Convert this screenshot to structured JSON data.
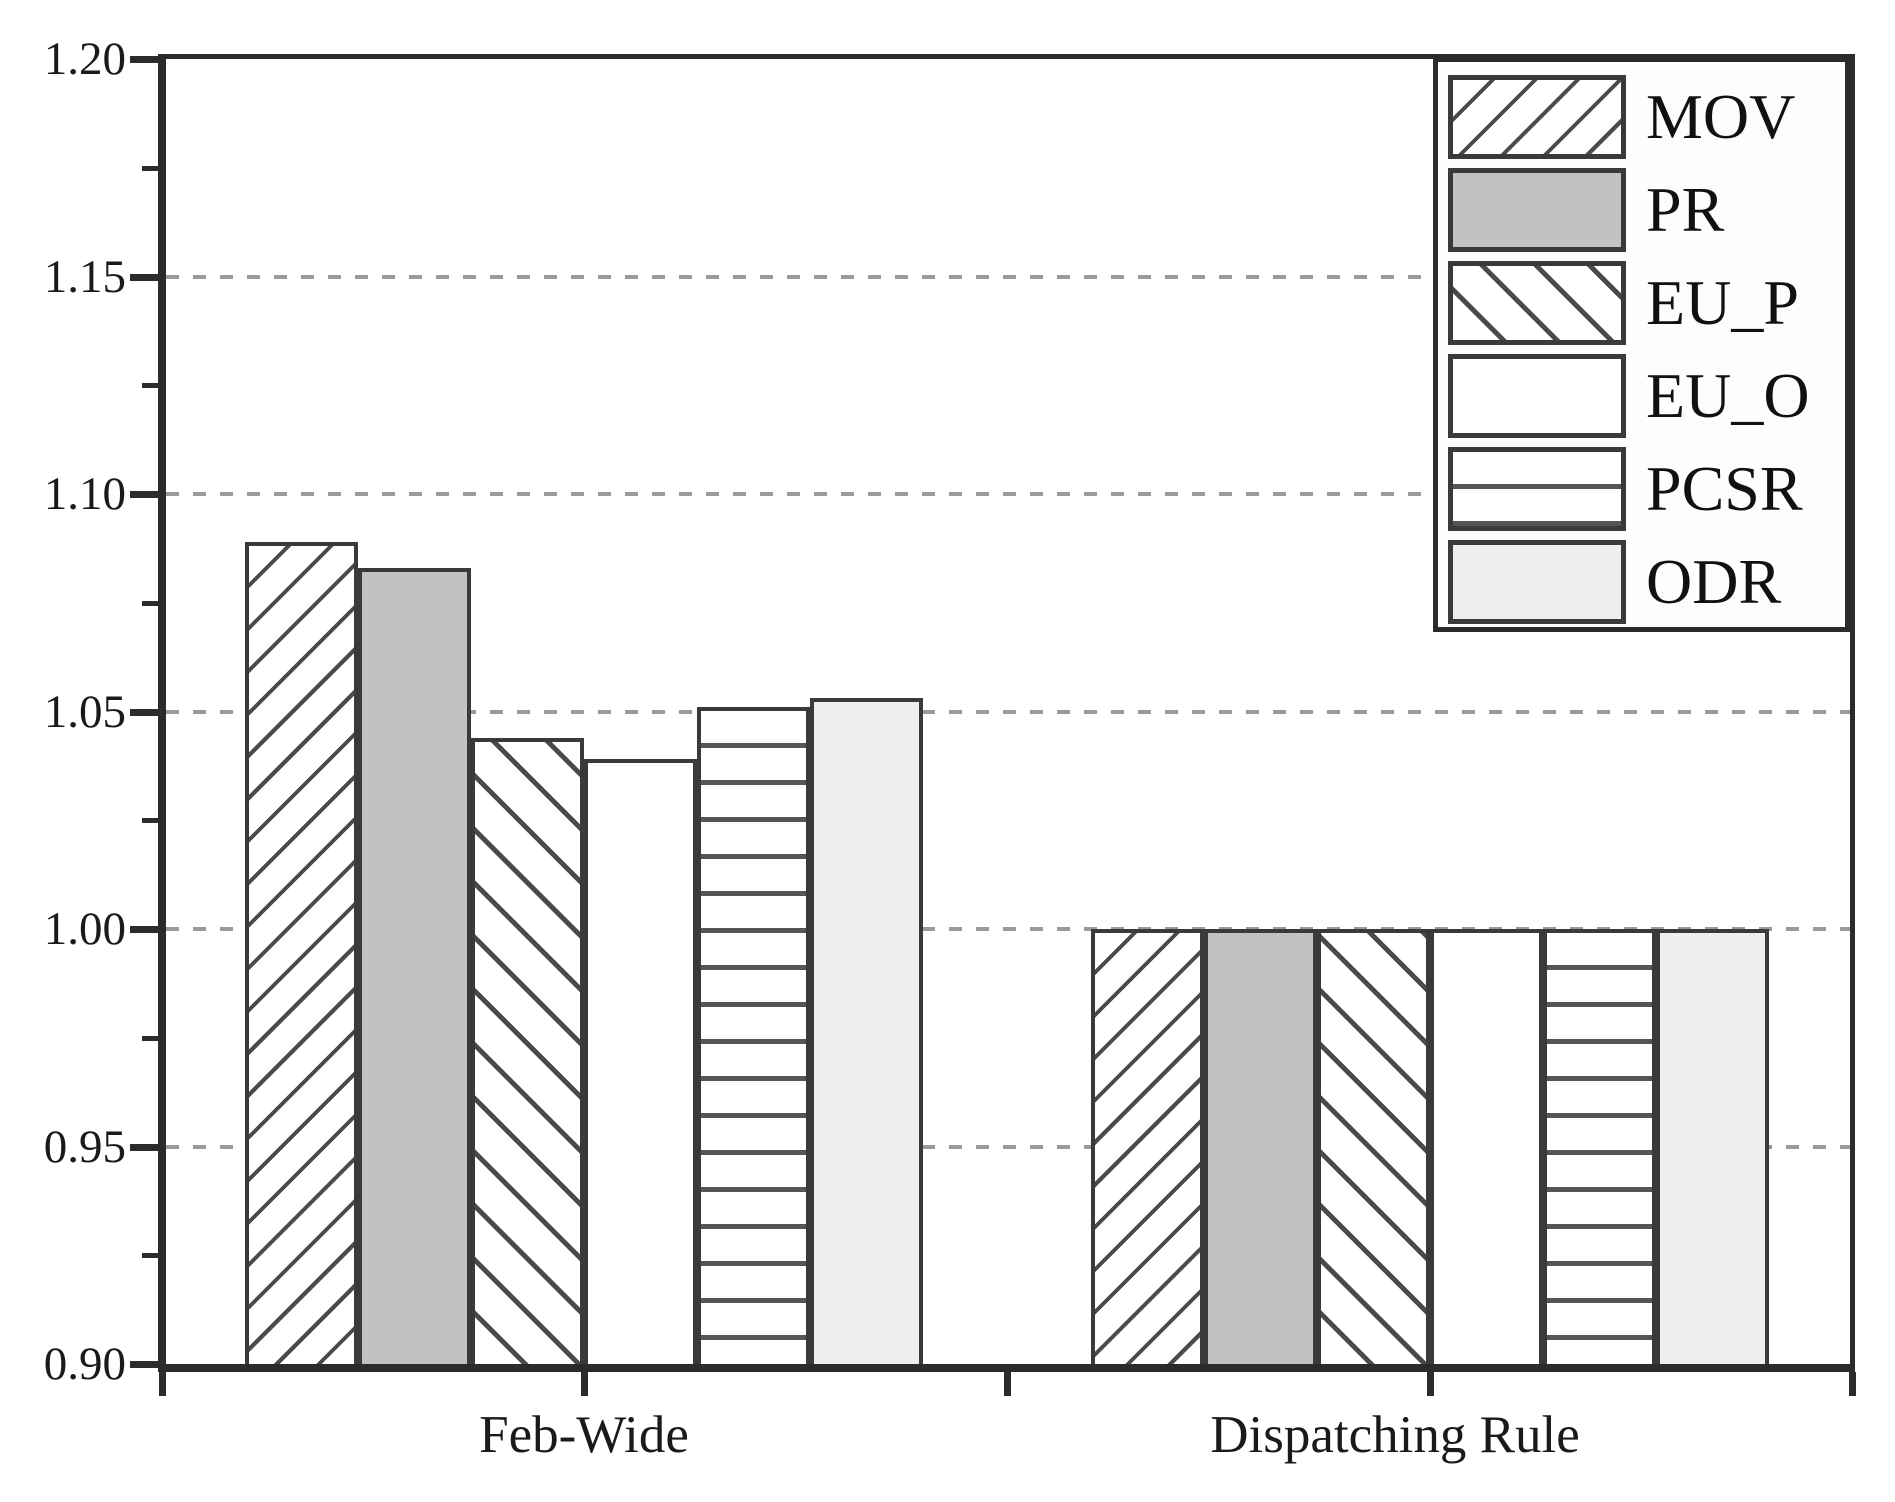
{
  "figure_title": "",
  "chart_data": {
    "type": "bar",
    "title": "",
    "xlabel": "",
    "ylabel": "",
    "categories": [
      "Feb-Wide",
      "Dispatching Rule"
    ],
    "series": [
      {
        "name": "MOV",
        "pattern": "diagonal-forward-hatch",
        "values": [
          1.089,
          1.0
        ]
      },
      {
        "name": "PR",
        "pattern": "solid-gray",
        "values": [
          1.083,
          1.0
        ]
      },
      {
        "name": "EU_P",
        "pattern": "diagonal-backward-hatch",
        "values": [
          1.044,
          1.0
        ]
      },
      {
        "name": "EU_O",
        "pattern": "white-empty",
        "values": [
          1.039,
          1.0
        ]
      },
      {
        "name": "PCSR",
        "pattern": "horizontal-lines",
        "values": [
          1.051,
          1.0
        ]
      },
      {
        "name": "ODR",
        "pattern": "solid-light-gray",
        "values": [
          1.053,
          1.0
        ]
      }
    ],
    "ylim": [
      0.9,
      1.2
    ],
    "yticks": [
      0.9,
      0.95,
      1.0,
      1.05,
      1.1,
      1.15,
      1.2
    ],
    "ytick_labels": [
      "0.90",
      "0.95",
      "1.00",
      "1.05",
      "1.10",
      "1.15",
      "1.20"
    ],
    "minor_tick_step": 0.025,
    "grid": "horizontal dashed at major ticks",
    "legend_position": "top-right",
    "legend_entries": [
      "MOV",
      "PR",
      "EU_P",
      "EU_O",
      "PCSR",
      "ODR"
    ]
  },
  "colors": {
    "background": "#ffffff",
    "axis": "#2b2b2b",
    "bar_edge": "#3a3a3a",
    "hatch_line": "#4a4a4a",
    "solid_gray_fill": "#c2c2c4",
    "light_gray_fill": "#efefef",
    "gridline": "#9a9a9a",
    "text": "#1a1a1a"
  }
}
